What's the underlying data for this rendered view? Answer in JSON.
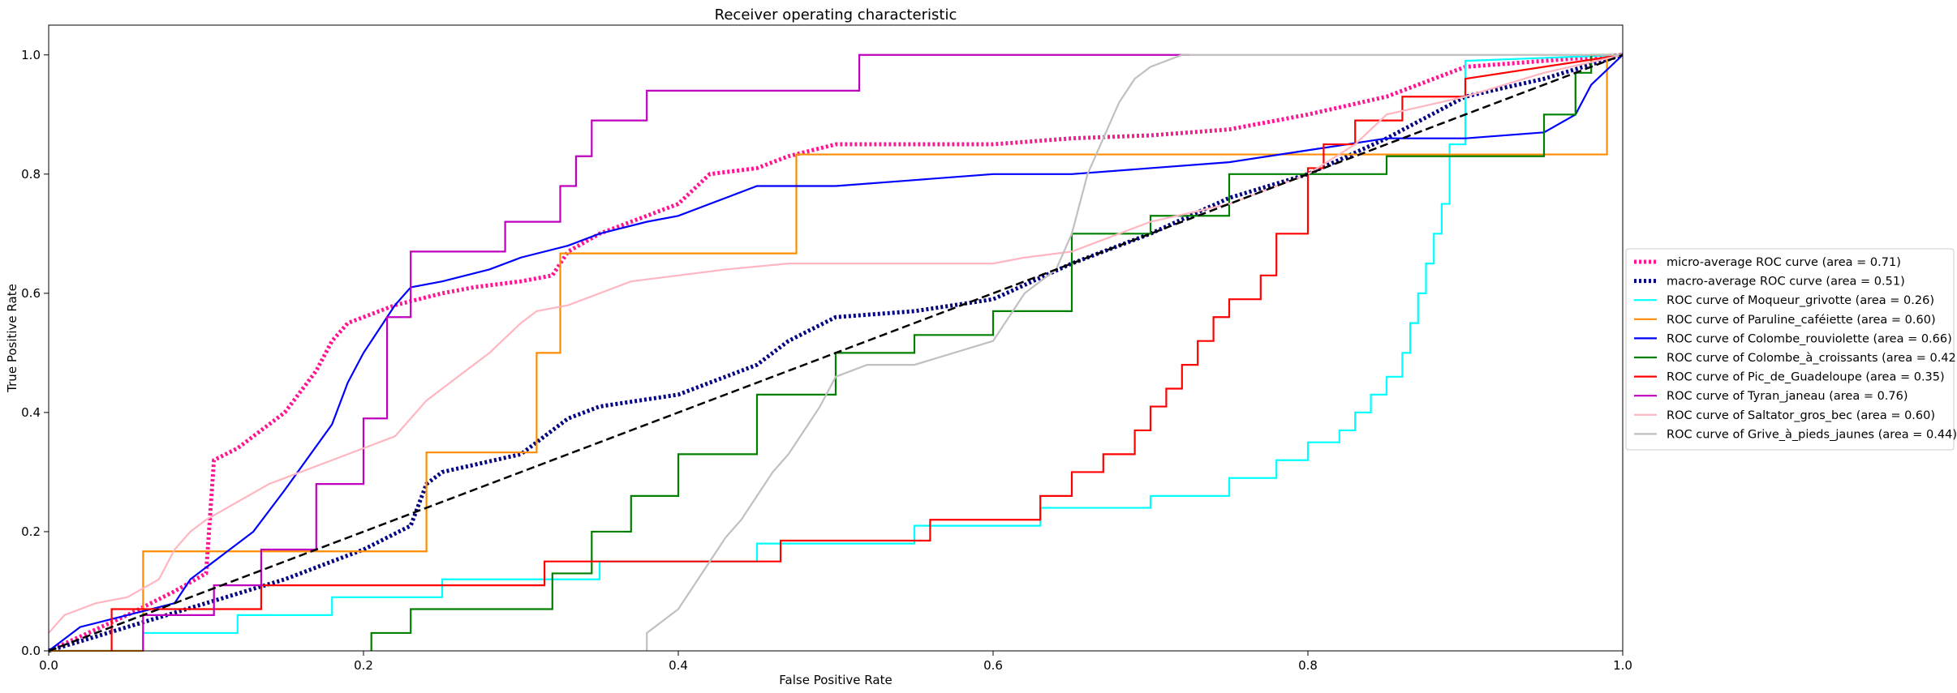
{
  "chart_data": {
    "type": "line",
    "title": "Receiver operating characteristic",
    "xlabel": "False Positive Rate",
    "ylabel": "True Positive Rate",
    "xlim": [
      0,
      1
    ],
    "ylim": [
      0,
      1.05
    ],
    "xticks": [
      0,
      0.2,
      0.4,
      0.6,
      0.8,
      1.0
    ],
    "xtick_labels": [
      "0.0",
      "0.2",
      "0.4",
      "0.6",
      "0.8",
      "1.0"
    ],
    "yticks": [
      0,
      0.2,
      0.4,
      0.6,
      0.8,
      1.0
    ],
    "ytick_labels": [
      "0.0",
      "0.2",
      "0.4",
      "0.6",
      "0.8",
      "1.0"
    ],
    "grid": false,
    "legend_position": "center-right outside",
    "series": [
      {
        "name": "micro-average ROC curve (area = 0.71)",
        "color": "#ff1493",
        "style": "dotted-thick",
        "x": [
          0,
          0.05,
          0.08,
          0.1,
          0.105,
          0.12,
          0.15,
          0.17,
          0.18,
          0.19,
          0.2,
          0.22,
          0.25,
          0.27,
          0.3,
          0.32,
          0.33,
          0.35,
          0.37,
          0.4,
          0.42,
          0.45,
          0.47,
          0.5,
          0.55,
          0.6,
          0.65,
          0.7,
          0.75,
          0.8,
          0.85,
          0.88,
          0.9,
          0.95,
          1.0
        ],
        "y": [
          0,
          0.06,
          0.1,
          0.13,
          0.32,
          0.34,
          0.4,
          0.47,
          0.52,
          0.55,
          0.56,
          0.58,
          0.6,
          0.61,
          0.62,
          0.63,
          0.67,
          0.7,
          0.72,
          0.75,
          0.8,
          0.81,
          0.83,
          0.85,
          0.85,
          0.85,
          0.86,
          0.865,
          0.875,
          0.9,
          0.93,
          0.96,
          0.98,
          0.99,
          1.0
        ]
      },
      {
        "name": "macro-average ROC curve (area = 0.51)",
        "color": "#000080",
        "style": "dotted-thick",
        "x": [
          0,
          0.05,
          0.1,
          0.15,
          0.2,
          0.23,
          0.24,
          0.25,
          0.3,
          0.33,
          0.35,
          0.4,
          0.45,
          0.47,
          0.5,
          0.55,
          0.6,
          0.65,
          0.7,
          0.75,
          0.8,
          0.85,
          0.9,
          0.95,
          1.0
        ],
        "y": [
          0,
          0.04,
          0.08,
          0.12,
          0.17,
          0.21,
          0.28,
          0.3,
          0.33,
          0.39,
          0.41,
          0.43,
          0.48,
          0.52,
          0.56,
          0.57,
          0.59,
          0.65,
          0.7,
          0.76,
          0.8,
          0.86,
          0.93,
          0.96,
          1.0
        ]
      },
      {
        "name": "ROC curve of Moqueur_grivotte (area = 0.26)",
        "color": "#00ffff",
        "style": "solid",
        "x": [
          0,
          0.06,
          0.06,
          0.12,
          0.12,
          0.18,
          0.18,
          0.25,
          0.25,
          0.35,
          0.35,
          0.45,
          0.45,
          0.55,
          0.55,
          0.63,
          0.63,
          0.7,
          0.7,
          0.75,
          0.75,
          0.78,
          0.78,
          0.8,
          0.8,
          0.82,
          0.82,
          0.83,
          0.83,
          0.84,
          0.84,
          0.85,
          0.85,
          0.86,
          0.86,
          0.865,
          0.865,
          0.87,
          0.87,
          0.875,
          0.875,
          0.88,
          0.88,
          0.885,
          0.885,
          0.89,
          0.89,
          0.9,
          0.9,
          1.0
        ],
        "y": [
          0,
          0,
          0.03,
          0.03,
          0.06,
          0.06,
          0.09,
          0.09,
          0.12,
          0.12,
          0.15,
          0.15,
          0.18,
          0.18,
          0.21,
          0.21,
          0.24,
          0.24,
          0.26,
          0.26,
          0.29,
          0.29,
          0.32,
          0.32,
          0.35,
          0.35,
          0.37,
          0.37,
          0.4,
          0.4,
          0.43,
          0.43,
          0.46,
          0.46,
          0.5,
          0.5,
          0.55,
          0.55,
          0.6,
          0.6,
          0.65,
          0.65,
          0.7,
          0.7,
          0.75,
          0.75,
          0.85,
          0.85,
          0.99,
          1.0
        ]
      },
      {
        "name": "ROC curve of Paruline_caféiette (area = 0.60)",
        "color": "#ff8c00",
        "style": "solid",
        "x": [
          0,
          0.06,
          0.06,
          0.24,
          0.24,
          0.31,
          0.31,
          0.325,
          0.325,
          0.475,
          0.475,
          0.99,
          0.99,
          1.0
        ],
        "y": [
          0,
          0,
          0.167,
          0.167,
          0.333,
          0.333,
          0.5,
          0.5,
          0.667,
          0.667,
          0.833,
          0.833,
          1.0,
          1.0
        ]
      },
      {
        "name": "ROC curve of Colombe_rouviolette (area = 0.66)",
        "color": "#0000ff",
        "style": "solid",
        "x": [
          0,
          0.02,
          0.05,
          0.08,
          0.09,
          0.11,
          0.13,
          0.15,
          0.18,
          0.19,
          0.2,
          0.21,
          0.22,
          0.23,
          0.25,
          0.28,
          0.3,
          0.33,
          0.35,
          0.38,
          0.4,
          0.43,
          0.45,
          0.47,
          0.5,
          0.55,
          0.6,
          0.65,
          0.7,
          0.75,
          0.8,
          0.85,
          0.9,
          0.95,
          0.97,
          0.98,
          1.0
        ],
        "y": [
          0,
          0.04,
          0.06,
          0.08,
          0.12,
          0.16,
          0.2,
          0.27,
          0.38,
          0.45,
          0.5,
          0.54,
          0.58,
          0.61,
          0.62,
          0.64,
          0.66,
          0.68,
          0.7,
          0.72,
          0.73,
          0.76,
          0.78,
          0.78,
          0.78,
          0.79,
          0.8,
          0.8,
          0.81,
          0.82,
          0.84,
          0.86,
          0.86,
          0.87,
          0.9,
          0.95,
          1.0
        ]
      },
      {
        "name": "ROC curve of Colombe_à_croissants (area = 0.42)",
        "color": "#008000",
        "style": "solid",
        "x": [
          0.205,
          0.205,
          0.23,
          0.23,
          0.32,
          0.32,
          0.345,
          0.345,
          0.37,
          0.37,
          0.4,
          0.4,
          0.45,
          0.45,
          0.5,
          0.5,
          0.55,
          0.55,
          0.6,
          0.6,
          0.65,
          0.65,
          0.7,
          0.7,
          0.75,
          0.75,
          0.8,
          0.8,
          0.85,
          0.85,
          0.95,
          0.95,
          0.97,
          0.97,
          0.98,
          0.98,
          1.0
        ],
        "y": [
          0,
          0.03,
          0.03,
          0.07,
          0.07,
          0.13,
          0.13,
          0.2,
          0.2,
          0.26,
          0.26,
          0.33,
          0.33,
          0.43,
          0.43,
          0.5,
          0.5,
          0.53,
          0.53,
          0.57,
          0.57,
          0.7,
          0.7,
          0.73,
          0.73,
          0.8,
          0.8,
          0.8,
          0.8,
          0.83,
          0.83,
          0.9,
          0.9,
          0.97,
          0.97,
          1.0,
          1.0
        ]
      },
      {
        "name": "ROC curve of Pic_de_Guadeloupe (area = 0.35)",
        "color": "#ff0000",
        "style": "solid",
        "x": [
          0.04,
          0.04,
          0.1,
          0.1,
          0.135,
          0.135,
          0.315,
          0.315,
          0.465,
          0.465,
          0.56,
          0.56,
          0.63,
          0.63,
          0.65,
          0.65,
          0.67,
          0.67,
          0.69,
          0.69,
          0.7,
          0.7,
          0.71,
          0.71,
          0.72,
          0.72,
          0.73,
          0.73,
          0.74,
          0.74,
          0.75,
          0.75,
          0.77,
          0.77,
          0.78,
          0.78,
          0.8,
          0.8,
          0.81,
          0.81,
          0.83,
          0.83,
          0.86,
          0.86,
          0.9,
          0.9,
          1.0
        ],
        "y": [
          0,
          0.07,
          0.07,
          0.07,
          0.07,
          0.11,
          0.11,
          0.15,
          0.15,
          0.185,
          0.185,
          0.22,
          0.22,
          0.26,
          0.26,
          0.3,
          0.3,
          0.33,
          0.33,
          0.37,
          0.37,
          0.41,
          0.41,
          0.44,
          0.44,
          0.48,
          0.48,
          0.52,
          0.52,
          0.56,
          0.56,
          0.59,
          0.59,
          0.63,
          0.63,
          0.7,
          0.7,
          0.81,
          0.81,
          0.85,
          0.85,
          0.89,
          0.89,
          0.93,
          0.93,
          0.96,
          1.0
        ]
      },
      {
        "name": "ROC curve of Tyran_janeau (area = 0.76)",
        "color": "#bf00bf",
        "style": "solid",
        "x": [
          0.06,
          0.06,
          0.105,
          0.105,
          0.135,
          0.135,
          0.17,
          0.17,
          0.2,
          0.2,
          0.215,
          0.215,
          0.23,
          0.23,
          0.29,
          0.29,
          0.325,
          0.325,
          0.335,
          0.335,
          0.345,
          0.345,
          0.38,
          0.38,
          0.4,
          0.4,
          0.43,
          0.43,
          0.515,
          0.515,
          0.725
        ],
        "y": [
          0,
          0.06,
          0.06,
          0.11,
          0.11,
          0.17,
          0.17,
          0.28,
          0.28,
          0.39,
          0.39,
          0.56,
          0.56,
          0.67,
          0.67,
          0.72,
          0.72,
          0.78,
          0.78,
          0.83,
          0.83,
          0.89,
          0.89,
          0.94,
          0.94,
          0.94,
          0.94,
          0.94,
          0.94,
          1.0,
          1.0
        ]
      },
      {
        "name": "ROC curve of Saltator_gros_bec (area = 0.60)",
        "color": "#ffb6c1",
        "style": "solid",
        "x": [
          0,
          0.01,
          0.03,
          0.05,
          0.07,
          0.08,
          0.09,
          0.1,
          0.12,
          0.14,
          0.16,
          0.18,
          0.2,
          0.22,
          0.23,
          0.24,
          0.26,
          0.28,
          0.3,
          0.31,
          0.33,
          0.35,
          0.37,
          0.4,
          0.43,
          0.47,
          0.5,
          0.55,
          0.6,
          0.62,
          0.65,
          0.68,
          0.7,
          0.75,
          0.8,
          0.83,
          0.85,
          0.9,
          0.95,
          1.0
        ],
        "y": [
          0.03,
          0.06,
          0.08,
          0.09,
          0.12,
          0.17,
          0.2,
          0.22,
          0.25,
          0.28,
          0.3,
          0.32,
          0.34,
          0.36,
          0.39,
          0.42,
          0.46,
          0.5,
          0.55,
          0.57,
          0.58,
          0.6,
          0.62,
          0.63,
          0.64,
          0.65,
          0.65,
          0.65,
          0.65,
          0.66,
          0.67,
          0.7,
          0.72,
          0.75,
          0.8,
          0.85,
          0.9,
          0.93,
          0.97,
          1.0
        ]
      },
      {
        "name": "ROC curve of Grive_à_pieds_jaunes (area = 0.44)",
        "color": "#c0c0c0",
        "style": "solid",
        "x": [
          0.38,
          0.38,
          0.4,
          0.41,
          0.42,
          0.43,
          0.44,
          0.45,
          0.46,
          0.47,
          0.48,
          0.49,
          0.5,
          0.52,
          0.55,
          0.6,
          0.62,
          0.64,
          0.65,
          0.66,
          0.67,
          0.68,
          0.69,
          0.7,
          0.72,
          0.725,
          0.8,
          0.9,
          1.0
        ],
        "y": [
          0,
          0.03,
          0.07,
          0.11,
          0.15,
          0.19,
          0.22,
          0.26,
          0.3,
          0.33,
          0.37,
          0.41,
          0.46,
          0.48,
          0.48,
          0.52,
          0.6,
          0.64,
          0.7,
          0.8,
          0.86,
          0.92,
          0.96,
          0.98,
          1.0,
          1.0,
          1.0,
          1.0,
          1.0
        ]
      },
      {
        "name": "",
        "color": "#000000",
        "style": "dashed",
        "x": [
          0,
          1
        ],
        "y": [
          0,
          1
        ]
      }
    ]
  }
}
